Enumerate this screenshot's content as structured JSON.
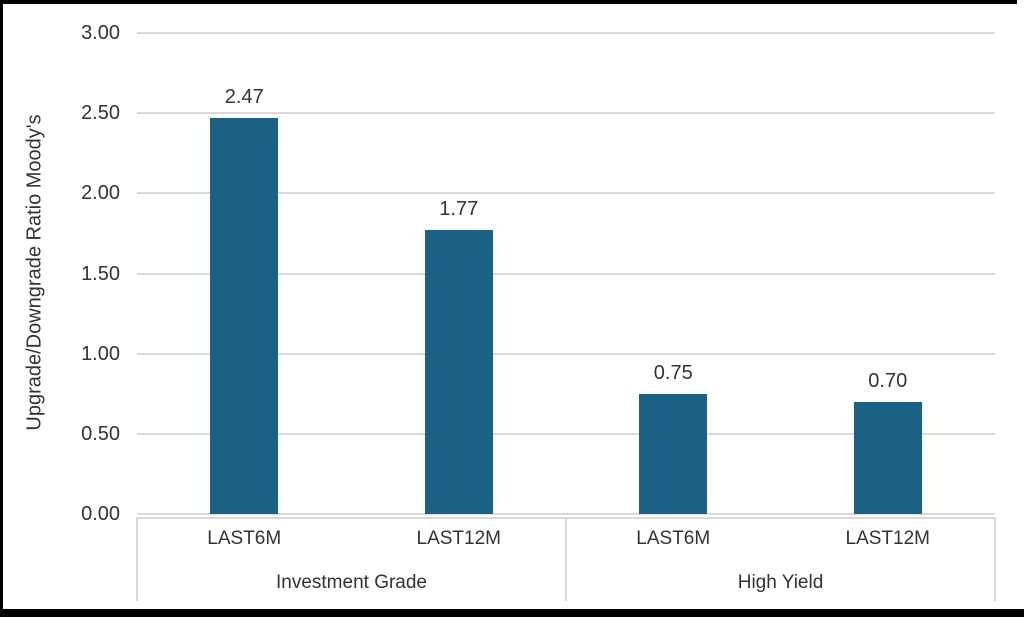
{
  "frame": {
    "border_color": "#000000",
    "background_color": "#ffffff"
  },
  "chart_data": {
    "type": "bar",
    "title": "",
    "xlabel": "",
    "ylabel": "Upgrade/Downgrade Ratio Moody's",
    "ylim": [
      0,
      3
    ],
    "ytick_labels": [
      "3.00",
      "2.50",
      "2.00",
      "1.50",
      "1.00",
      "0.50",
      "0.00"
    ],
    "ytick_values": [
      3.0,
      2.5,
      2.0,
      1.5,
      1.0,
      0.5,
      0.0
    ],
    "grid": "horizontal",
    "legend": "none",
    "bar_color": "#1a6183",
    "gridline_color": "#d9d9d9",
    "text_color": "#333333",
    "groups": [
      {
        "label": "Investment Grade",
        "categories": [
          "LAST6M",
          "LAST12M"
        ],
        "values": [
          2.47,
          1.77
        ],
        "value_labels": [
          "2.47",
          "1.77"
        ]
      },
      {
        "label": "High Yield",
        "categories": [
          "LAST6M",
          "LAST12M"
        ],
        "values": [
          0.75,
          0.7
        ],
        "value_labels": [
          "0.75",
          "0.70"
        ]
      }
    ]
  }
}
